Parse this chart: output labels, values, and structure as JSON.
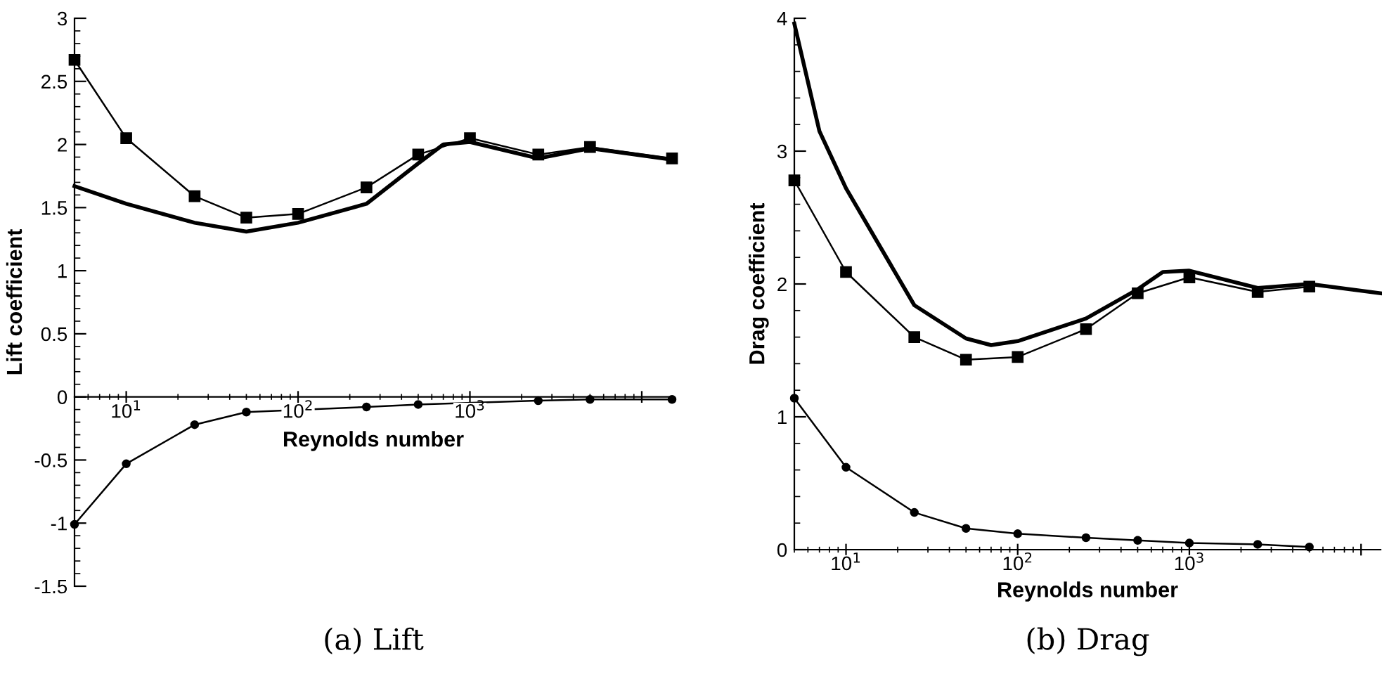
{
  "chart_data": [
    {
      "type": "line",
      "title": "(a) Lift",
      "xlabel": "Reynolds number",
      "ylabel": "Lift coefficient",
      "log": "x",
      "xlim": [
        5,
        15000
      ],
      "ylim": [
        -1.5,
        3
      ],
      "xticks": [
        {
          "value": 10,
          "label": "10$^{1}$"
        },
        {
          "value": 100,
          "label": "10$^{2}$"
        },
        {
          "value": 1000,
          "label": "10$^{3}$"
        },
        {
          "value": 10000,
          "label": null
        }
      ],
      "yticks": [
        -1.5,
        -1,
        -0.5,
        0,
        0.5,
        1,
        1.5,
        2,
        2.5,
        3
      ],
      "grid": false,
      "legend": false,
      "series": [
        {
          "color": "#000000",
          "marker": "square",
          "x": [
            5,
            10,
            25,
            50,
            100,
            250,
            500,
            1000,
            2500,
            5000,
            15000
          ],
          "values": [
            2.67,
            2.05,
            1.59,
            1.42,
            1.45,
            1.66,
            1.92,
            2.05,
            1.92,
            1.98,
            1.89
          ]
        },
        {
          "color": "#000000",
          "marker": "none",
          "x": [
            5,
            10,
            25,
            50,
            100,
            250,
            500,
            700,
            1000,
            2500,
            5000,
            15000
          ],
          "values": [
            1.67,
            1.53,
            1.38,
            1.31,
            1.38,
            1.53,
            1.85,
            2.0,
            2.02,
            1.89,
            1.97,
            1.88
          ]
        },
        {
          "color": "#000000",
          "marker": "circle",
          "x": [
            5,
            10,
            25,
            50,
            250,
            500,
            2500,
            5000,
            15000
          ],
          "values": [
            -1.01,
            -0.53,
            -0.22,
            -0.12,
            -0.08,
            -0.06,
            -0.03,
            -0.02,
            -0.02
          ]
        }
      ]
    },
    {
      "type": "line",
      "title": "(b) Drag",
      "xlabel": "Reynolds number",
      "ylabel": "Drag coefficient",
      "log": "x",
      "xlim": [
        5,
        13000
      ],
      "ylim": [
        0,
        4
      ],
      "xticks": [
        {
          "value": 10,
          "label": "10$^{1}$"
        },
        {
          "value": 100,
          "label": "10$^{2}$"
        },
        {
          "value": 1000,
          "label": "10$^{3}$"
        },
        {
          "value": 10000,
          "label": null
        }
      ],
      "yticks": [
        0,
        1,
        2,
        3,
        4
      ],
      "grid": false,
      "legend": false,
      "series": [
        {
          "color": "#000000",
          "marker": "none",
          "x": [
            5,
            7,
            10,
            25,
            50,
            70,
            100,
            250,
            500,
            700,
            1000,
            2500,
            5000,
            13000
          ],
          "values": [
            3.96,
            3.15,
            2.72,
            1.84,
            1.59,
            1.54,
            1.57,
            1.74,
            1.96,
            2.09,
            2.1,
            1.97,
            2.0,
            1.93
          ]
        },
        {
          "color": "#000000",
          "marker": "square",
          "x": [
            5,
            10,
            25,
            50,
            100,
            250,
            500,
            1000,
            2500,
            5000
          ],
          "values": [
            2.78,
            2.09,
            1.6,
            1.43,
            1.45,
            1.66,
            1.93,
            2.05,
            1.94,
            1.98
          ]
        },
        {
          "color": "#000000",
          "marker": "circle",
          "x": [
            5,
            10,
            25,
            50,
            100,
            250,
            500,
            1000,
            2500,
            5000
          ],
          "values": [
            1.14,
            0.62,
            0.28,
            0.16,
            0.12,
            0.09,
            0.07,
            0.05,
            0.04,
            0.02
          ]
        }
      ]
    }
  ]
}
